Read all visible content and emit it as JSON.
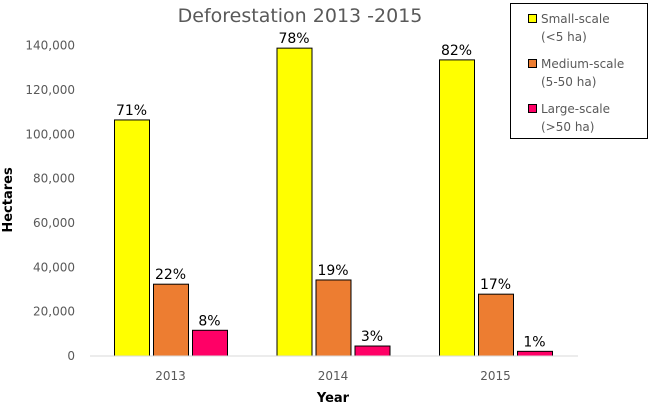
{
  "chart_data": {
    "type": "bar",
    "title": "Deforestation 2013 -2015",
    "xlabel": "Year",
    "ylabel": "Hectares",
    "ylim": [
      0,
      140000
    ],
    "yticks": [
      "0",
      "20,000",
      "40,000",
      "60,000",
      "80,000",
      "100,000",
      "120,000",
      "140,000"
    ],
    "categories": [
      "2013",
      "2014",
      "2015"
    ],
    "legend_position": "top-right",
    "series": [
      {
        "name": "Small-scale",
        "sub": "(<5 ha)",
        "color": "#FFFF00",
        "values": [
          106500,
          138900,
          133600
        ],
        "labels": [
          "71%",
          "78%",
          "82%"
        ]
      },
      {
        "name": "Medium-scale",
        "sub": "(5-50 ha)",
        "color": "#ED7D31",
        "values": [
          32400,
          34300,
          27900
        ],
        "labels": [
          "22%",
          "19%",
          "17%"
        ]
      },
      {
        "name": "Large-scale",
        "sub": "(>50 ha)",
        "color": "#FF0066",
        "values": [
          11600,
          4500,
          2100
        ],
        "labels": [
          "8%",
          "3%",
          "1%"
        ]
      }
    ]
  }
}
